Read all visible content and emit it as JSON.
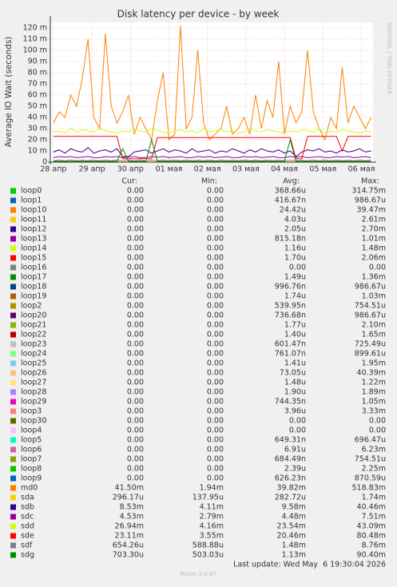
{
  "chart_data": {
    "type": "line",
    "title": "Disk latency per device - by week",
    "y_label": "Average IO Wait (seconds)",
    "watermark": "RRDTOOL / TOBI OETIKER",
    "xlim": [
      -0.08,
      8.3
    ],
    "xticks": [
      {
        "value": 0,
        "label": "28 апр"
      },
      {
        "value": 1,
        "label": "29 апр"
      },
      {
        "value": 2,
        "label": "30 апр"
      },
      {
        "value": 3,
        "label": "01 мая"
      },
      {
        "value": 4,
        "label": "02 мая"
      },
      {
        "value": 5,
        "label": "03 мая"
      },
      {
        "value": 6,
        "label": "04 мая"
      },
      {
        "value": 7,
        "label": "05 мая"
      },
      {
        "value": 8,
        "label": "06 мая"
      }
    ],
    "ylim": [
      0,
      0.125
    ],
    "yticks": [
      0,
      {
        "value": 0.01,
        "label": "10 m"
      },
      {
        "value": 0.02,
        "label": "20 m"
      },
      {
        "value": 0.03,
        "label": "30 m"
      },
      {
        "value": 0.04,
        "label": "40 m"
      },
      {
        "value": 0.05,
        "label": "50 m"
      },
      {
        "value": 0.06,
        "label": "60 m"
      },
      {
        "value": 0.07,
        "label": "70 m"
      },
      {
        "value": 0.08,
        "label": "80 m"
      },
      {
        "value": 0.09,
        "label": "90 m"
      },
      {
        "value": 0.1,
        "label": "100 m"
      },
      {
        "value": 0.11,
        "label": "110 m"
      },
      {
        "value": 0.12,
        "label": "120 m"
      }
    ],
    "grid": true,
    "x": [
      0,
      0.15,
      0.3,
      0.45,
      0.6,
      0.75,
      0.9,
      1.05,
      1.2,
      1.35,
      1.5,
      1.65,
      1.8,
      1.95,
      2.1,
      2.25,
      2.4,
      2.55,
      2.7,
      2.85,
      3,
      3.15,
      3.3,
      3.45,
      3.6,
      3.75,
      3.9,
      4.05,
      4.2,
      4.35,
      4.5,
      4.65,
      4.8,
      4.95,
      5.1,
      5.25,
      5.4,
      5.55,
      5.7,
      5.85,
      6,
      6.15,
      6.3,
      6.45,
      6.6,
      6.75,
      6.9,
      7.05,
      7.2,
      7.35,
      7.5,
      7.65,
      7.8,
      7.95,
      8.1,
      8.25
    ],
    "legend_columns": [
      "Cur:",
      "Min:",
      "Avg:",
      "Max:"
    ],
    "series": [
      {
        "name": "loop0",
        "color": "#00cc00",
        "cur": "0.00",
        "min": "0.00",
        "avg": "368.66u",
        "max": "314.75m"
      },
      {
        "name": "loop1",
        "color": "#0066b3",
        "cur": "0.00",
        "min": "0.00",
        "avg": "416.67n",
        "max": "986.67u"
      },
      {
        "name": "loop10",
        "color": "#ff8000",
        "cur": "0.00",
        "min": "0.00",
        "avg": "24.42u",
        "max": "39.47m"
      },
      {
        "name": "loop11",
        "color": "#ffcc00",
        "cur": "0.00",
        "min": "0.00",
        "avg": "4.03u",
        "max": "2.61m"
      },
      {
        "name": "loop12",
        "color": "#330099",
        "cur": "0.00",
        "min": "0.00",
        "avg": "2.05u",
        "max": "2.70m"
      },
      {
        "name": "loop13",
        "color": "#990099",
        "cur": "0.00",
        "min": "0.00",
        "avg": "815.18n",
        "max": "1.01m"
      },
      {
        "name": "loop14",
        "color": "#ccff00",
        "cur": "0.00",
        "min": "0.00",
        "avg": "1.16u",
        "max": "1.48m"
      },
      {
        "name": "loop15",
        "color": "#ff0000",
        "cur": "0.00",
        "min": "0.00",
        "avg": "1.70u",
        "max": "2.06m"
      },
      {
        "name": "loop16",
        "color": "#808080",
        "cur": "0.00",
        "min": "0.00",
        "avg": "0.00",
        "max": "0.00"
      },
      {
        "name": "loop17",
        "color": "#008f00",
        "cur": "0.00",
        "min": "0.00",
        "avg": "1.49u",
        "max": "1.36m"
      },
      {
        "name": "loop18",
        "color": "#00487d",
        "cur": "0.00",
        "min": "0.00",
        "avg": "996.76n",
        "max": "986.67u"
      },
      {
        "name": "loop19",
        "color": "#b35a00",
        "cur": "0.00",
        "min": "0.00",
        "avg": "1.74u",
        "max": "1.03m"
      },
      {
        "name": "loop2",
        "color": "#b38f00",
        "cur": "0.00",
        "min": "0.00",
        "avg": "539.95n",
        "max": "754.51u"
      },
      {
        "name": "loop20",
        "color": "#6b006b",
        "cur": "0.00",
        "min": "0.00",
        "avg": "736.68n",
        "max": "986.67u"
      },
      {
        "name": "loop21",
        "color": "#8fb300",
        "cur": "0.00",
        "min": "0.00",
        "avg": "1.77u",
        "max": "2.10m"
      },
      {
        "name": "loop22",
        "color": "#b30000",
        "cur": "0.00",
        "min": "0.00",
        "avg": "1.40u",
        "max": "1.65m"
      },
      {
        "name": "loop23",
        "color": "#bebebe",
        "cur": "0.00",
        "min": "0.00",
        "avg": "601.47n",
        "max": "725.49u"
      },
      {
        "name": "loop24",
        "color": "#80ff80",
        "cur": "0.00",
        "min": "0.00",
        "avg": "761.07n",
        "max": "899.61u"
      },
      {
        "name": "loop25",
        "color": "#80c9ff",
        "cur": "0.00",
        "min": "0.00",
        "avg": "1.41u",
        "max": "1.95m"
      },
      {
        "name": "loop26",
        "color": "#ffc080",
        "cur": "0.00",
        "min": "0.00",
        "avg": "73.05u",
        "max": "40.39m"
      },
      {
        "name": "loop27",
        "color": "#ffe680",
        "cur": "0.00",
        "min": "0.00",
        "avg": "1.48u",
        "max": "1.22m"
      },
      {
        "name": "loop28",
        "color": "#aa80ff",
        "cur": "0.00",
        "min": "0.00",
        "avg": "1.90u",
        "max": "1.89m"
      },
      {
        "name": "loop29",
        "color": "#ee00cc",
        "cur": "0.00",
        "min": "0.00",
        "avg": "744.35n",
        "max": "1.05m"
      },
      {
        "name": "loop3",
        "color": "#ff8080",
        "cur": "0.00",
        "min": "0.00",
        "avg": "3.96u",
        "max": "3.33m"
      },
      {
        "name": "loop30",
        "color": "#666600",
        "cur": "0.00",
        "min": "0.00",
        "avg": "0.00",
        "max": "0.00"
      },
      {
        "name": "loop4",
        "color": "#ffbfff",
        "cur": "0.00",
        "min": "0.00",
        "avg": "0.00",
        "max": "0.00"
      },
      {
        "name": "loop5",
        "color": "#00ffcc",
        "cur": "0.00",
        "min": "0.00",
        "avg": "649.31n",
        "max": "696.47u"
      },
      {
        "name": "loop6",
        "color": "#cc6699",
        "cur": "0.00",
        "min": "0.00",
        "avg": "6.91u",
        "max": "6.23m"
      },
      {
        "name": "loop7",
        "color": "#999900",
        "cur": "0.00",
        "min": "0.00",
        "avg": "684.49n",
        "max": "754.51u"
      },
      {
        "name": "loop8",
        "color": "#00cc00",
        "cur": "0.00",
        "min": "0.00",
        "avg": "2.39u",
        "max": "2.25m"
      },
      {
        "name": "loop9",
        "color": "#0066b3",
        "cur": "0.00",
        "min": "0.00",
        "avg": "626.23n",
        "max": "870.59u"
      },
      {
        "name": "md0",
        "color": "#ff8000",
        "cur": "41.50m",
        "min": "1.94m",
        "avg": "39.82m",
        "max": "518.83m",
        "values": [
          0.035,
          0.045,
          0.04,
          0.06,
          0.05,
          0.075,
          0.11,
          0.04,
          0.03,
          0.115,
          0.05,
          0.035,
          0.045,
          0.06,
          0.025,
          0.04,
          0.03,
          0.02,
          0.055,
          0.08,
          0.02,
          0.025,
          0.122,
          0.03,
          0.04,
          0.1,
          0.035,
          0.02,
          0.025,
          0.03,
          0.05,
          0.025,
          0.03,
          0.04,
          0.025,
          0.06,
          0.03,
          0.055,
          0.04,
          0.09,
          0.025,
          0.05,
          0.035,
          0.045,
          0.1,
          0.045,
          0.03,
          0.02,
          0.04,
          0.03,
          0.085,
          0.035,
          0.05,
          0.04,
          0.03,
          0.04
        ]
      },
      {
        "name": "sda",
        "color": "#ffcc00",
        "cur": "296.17u",
        "min": "137.95u",
        "avg": "282.72u",
        "max": "1.74m",
        "values": [
          0.0003,
          0.0003,
          0.0003,
          0.0003,
          0.0003,
          0.0003,
          0.0003,
          0.0003,
          0.0003,
          0.0003,
          0.0003,
          0.0003,
          0.0003,
          0.0003,
          0.0003,
          0.0003,
          0.0003,
          0.0003,
          0.0003,
          0.0003,
          0.0003,
          0.0003,
          0.0003,
          0.0003,
          0.0003,
          0.0003,
          0.0003,
          0.0003,
          0.0003,
          0.0003,
          0.0003,
          0.0003,
          0.0003,
          0.0003,
          0.0003,
          0.0003,
          0.0003,
          0.0003,
          0.0003,
          0.0003,
          0.0003,
          0.0003,
          0.0003,
          0.0003,
          0.0003,
          0.0003,
          0.0003,
          0.0003,
          0.0003,
          0.0003,
          0.0003,
          0.0003,
          0.0003,
          0.0003,
          0.0003,
          0.0003
        ]
      },
      {
        "name": "sdb",
        "color": "#330099",
        "cur": "8.53m",
        "min": "4.11m",
        "avg": "9.58m",
        "max": "40.46m",
        "values": [
          0.009,
          0.011,
          0.008,
          0.012,
          0.01,
          0.009,
          0.013,
          0.008,
          0.01,
          0.011,
          0.009,
          0.012,
          0.005,
          0.005,
          0.009,
          0.01,
          0.011,
          0.008,
          0.01,
          0.012,
          0.009,
          0.011,
          0.01,
          0.008,
          0.012,
          0.009,
          0.01,
          0.011,
          0.008,
          0.01,
          0.009,
          0.012,
          0.01,
          0.008,
          0.011,
          0.009,
          0.012,
          0.01,
          0.009,
          0.011,
          0.008,
          0.01,
          0.005,
          0.009,
          0.011,
          0.01,
          0.012,
          0.009,
          0.01,
          0.008,
          0.011,
          0.009,
          0.01,
          0.012,
          0.009,
          0.01
        ]
      },
      {
        "name": "sdc",
        "color": "#990099",
        "cur": "4.53m",
        "min": "2.79m",
        "avg": "4.48m",
        "max": "7.51m",
        "values": [
          0.004,
          0.005,
          0.0045,
          0.005,
          0.004,
          0.0045,
          0.005,
          0.004,
          0.004,
          0.005,
          0.0045,
          0.005,
          0.004,
          0.0045,
          0.005,
          0.004,
          0.004,
          0.005,
          0.0045,
          0.005,
          0.004,
          0.0045,
          0.005,
          0.004,
          0.004,
          0.005,
          0.0045,
          0.005,
          0.004,
          0.0045,
          0.005,
          0.004,
          0.004,
          0.005,
          0.0045,
          0.005,
          0.004,
          0.0045,
          0.005,
          0.004,
          0.004,
          0.005,
          0.0045,
          0.005,
          0.004,
          0.0045,
          0.005,
          0.004,
          0.004,
          0.005,
          0.0045,
          0.005,
          0.004,
          0.0045,
          0.005,
          0.004
        ]
      },
      {
        "name": "sdd",
        "color": "#ccff00",
        "cur": "26.94m",
        "min": "4.16m",
        "avg": "23.54m",
        "max": "43.09m",
        "values": [
          0.027,
          0.028,
          0.026,
          0.03,
          0.027,
          0.029,
          0.028,
          0.027,
          0.03,
          0.028,
          0.027,
          0.026,
          0.028,
          0.027,
          0.029,
          0.028,
          0.027,
          0.03,
          0.028,
          0.027,
          0.026,
          0.028,
          0.029,
          0.027,
          0.028,
          0.026,
          0.03,
          0.027,
          0.028,
          0.029,
          0.027,
          0.028,
          0.026,
          0.027,
          0.03,
          0.028,
          0.027,
          0.029,
          0.028,
          0.027,
          0.026,
          0.028,
          0.027,
          0.029,
          0.028,
          0.027,
          0.03,
          0.026,
          0.028,
          0.027,
          0.029,
          0.028,
          0.027,
          0.026,
          0.028,
          0.027
        ]
      },
      {
        "name": "sde",
        "color": "#ff0000",
        "cur": "23.11m",
        "min": "3.55m",
        "avg": "20.46m",
        "max": "80.48m",
        "values": [
          0.023,
          0.023,
          0.023,
          0.023,
          0.023,
          0.023,
          0.023,
          0.023,
          0.023,
          0.023,
          0.023,
          0.023,
          0.003,
          0.003,
          0.003,
          0.003,
          0.003,
          0.003,
          0.022,
          0.022,
          0.022,
          0.022,
          0.022,
          0.022,
          0.022,
          0.022,
          0.022,
          0.022,
          0.022,
          0.022,
          0.022,
          0.022,
          0.022,
          0.022,
          0.022,
          0.022,
          0.022,
          0.022,
          0.022,
          0.022,
          0.022,
          0.022,
          0.003,
          0.003,
          0.023,
          0.023,
          0.023,
          0.023,
          0.023,
          0.023,
          0.01,
          0.023,
          0.023,
          0.023,
          0.023,
          0.023
        ]
      },
      {
        "name": "sdf",
        "color": "#808080",
        "cur": "654.26u",
        "min": "588.88u",
        "avg": "1.48m",
        "max": "8.76m",
        "values": [
          0.0012,
          0.0018,
          0.0012,
          0.0018,
          0.0012,
          0.0018,
          0.0012,
          0.0018,
          0.0012,
          0.0018,
          0.0012,
          0.0018,
          0.0012,
          0.0018,
          0.0012,
          0.0018,
          0.0012,
          0.0018,
          0.0012,
          0.0018,
          0.0012,
          0.0018,
          0.0012,
          0.0018,
          0.0012,
          0.0018,
          0.0012,
          0.0018,
          0.0012,
          0.0018,
          0.0012,
          0.0018,
          0.0012,
          0.0018,
          0.0012,
          0.0018,
          0.0012,
          0.0018,
          0.0012,
          0.0018,
          0.0012,
          0.0018,
          0.0012,
          0.0018,
          0.0012,
          0.0018,
          0.0012,
          0.0018,
          0.0012,
          0.0018,
          0.0012,
          0.0018,
          0.0012,
          0.0018,
          0.0012,
          0.0018
        ]
      },
      {
        "name": "sdg",
        "color": "#008f00",
        "cur": "703.30u",
        "min": "503.03u",
        "avg": "1.13m",
        "max": "90.40m",
        "values": [
          0.0007,
          0.0007,
          0.0007,
          0.0007,
          0.0007,
          0.0007,
          0.0007,
          0.0007,
          0.0007,
          0.0007,
          0.0007,
          0.0007,
          0.012,
          0.0007,
          0.0007,
          0.0007,
          0.0007,
          0.02,
          0.0007,
          0.0007,
          0.0007,
          0.0007,
          0.0007,
          0.0007,
          0.0007,
          0.0007,
          0.0007,
          0.0007,
          0.0007,
          0.0007,
          0.0007,
          0.0007,
          0.0007,
          0.0007,
          0.0007,
          0.0007,
          0.0007,
          0.0007,
          0.0007,
          0.0007,
          0.0007,
          0.02,
          0.0007,
          0.0007,
          0.0007,
          0.0007,
          0.0007,
          0.0007,
          0.0007,
          0.0007,
          0.0007,
          0.0007,
          0.0007,
          0.0007,
          0.0007,
          0.0007
        ]
      }
    ],
    "last_update": "Last update: Wed May  6 19:30:04 2026",
    "version": "Munin 2.0.67"
  }
}
